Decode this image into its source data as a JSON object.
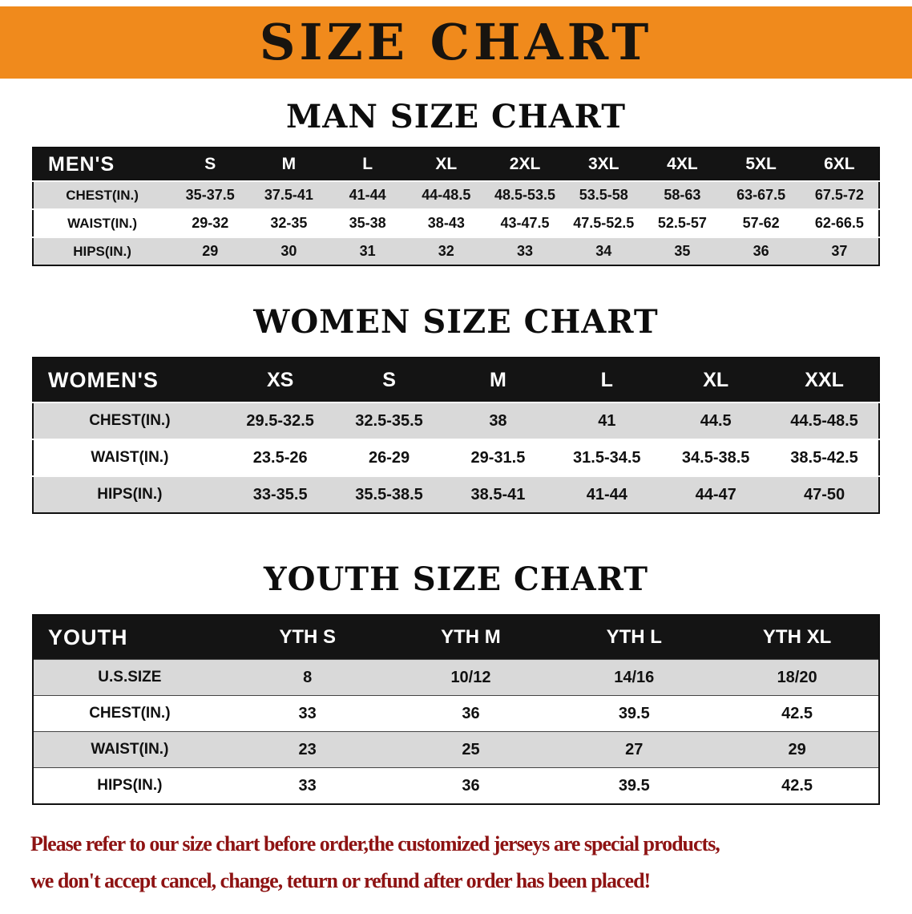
{
  "banner": {
    "title": "SIZE CHART",
    "bg_color": "#f08a1c"
  },
  "sections": [
    {
      "id": "men",
      "title": "MAN SIZE CHART",
      "table": {
        "header": [
          "MEN'S",
          "S",
          "M",
          "L",
          "XL",
          "2XL",
          "3XL",
          "4XL",
          "5XL",
          "6XL"
        ],
        "rows": [
          [
            "CHEST(IN.)",
            "35-37.5",
            "37.5-41",
            "41-44",
            "44-48.5",
            "48.5-53.5",
            "53.5-58",
            "58-63",
            "63-67.5",
            "67.5-72"
          ],
          [
            "WAIST(IN.)",
            "29-32",
            "32-35",
            "35-38",
            "38-43",
            "43-47.5",
            "47.5-52.5",
            "52.5-57",
            "57-62",
            "62-66.5"
          ],
          [
            "HIPS(IN.)",
            "29",
            "30",
            "31",
            "32",
            "33",
            "34",
            "35",
            "36",
            "37"
          ]
        ]
      }
    },
    {
      "id": "women",
      "title": "WOMEN SIZE CHART",
      "table": {
        "header": [
          "WOMEN'S",
          "XS",
          "S",
          "M",
          "L",
          "XL",
          "XXL"
        ],
        "rows": [
          [
            "CHEST(IN.)",
            "29.5-32.5",
            "32.5-35.5",
            "38",
            "41",
            "44.5",
            "44.5-48.5"
          ],
          [
            "WAIST(IN.)",
            "23.5-26",
            "26-29",
            "29-31.5",
            "31.5-34.5",
            "34.5-38.5",
            "38.5-42.5"
          ],
          [
            "HIPS(IN.)",
            "33-35.5",
            "35.5-38.5",
            "38.5-41",
            "41-44",
            "44-47",
            "47-50"
          ]
        ]
      }
    },
    {
      "id": "youth",
      "title": "YOUTH SIZE CHART",
      "table": {
        "header": [
          "YOUTH",
          "YTH S",
          "YTH M",
          "YTH L",
          "YTH XL"
        ],
        "rows": [
          [
            "U.S.SIZE",
            "8",
            "10/12",
            "14/16",
            "18/20"
          ],
          [
            "CHEST(IN.)",
            "33",
            "36",
            "39.5",
            "42.5"
          ],
          [
            "WAIST(IN.)",
            "23",
            "25",
            "27",
            "29"
          ],
          [
            "HIPS(IN.)",
            "33",
            "36",
            "39.5",
            "42.5"
          ]
        ]
      }
    }
  ],
  "footer": {
    "line1": "Please refer to our size chart before order,the customized jerseys are special products,",
    "line2": "we don't accept cancel, change, teturn or refund after order has been placed!",
    "text_color": "#8e1313"
  },
  "colors": {
    "banner_bg": "#f08a1c",
    "header_row_bg": "#141414",
    "alt_row_bg": "#d9d9d9"
  }
}
